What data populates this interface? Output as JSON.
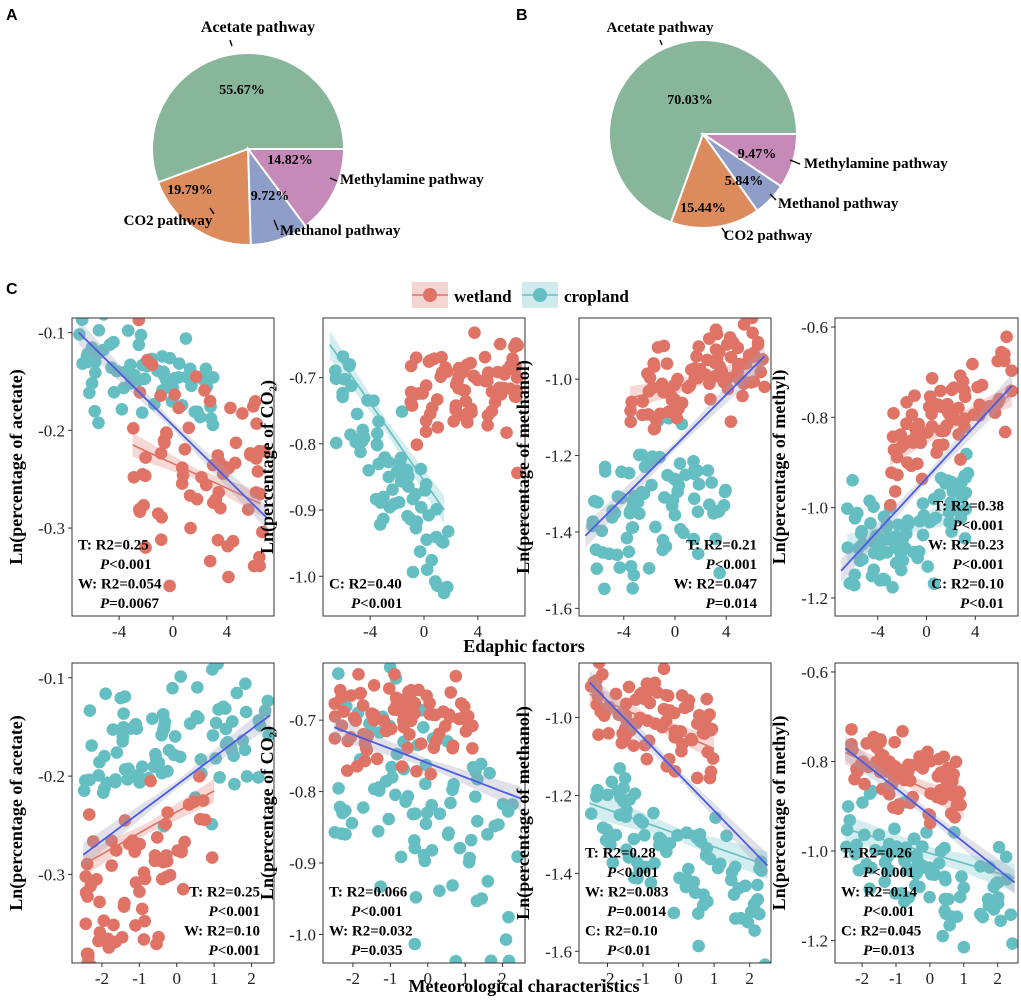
{
  "colors": {
    "wetland": "#df7366",
    "cropland": "#65bec2",
    "overall_fit": "#4b5be6",
    "pie_acetate": "#87b69b",
    "pie_co2": "#db8b5c",
    "pie_methanol": "#8f9dc9",
    "pie_methylamine": "#c58ab8"
  },
  "panel_labels": {
    "a": "A",
    "b": "B",
    "c": "C"
  },
  "legend": {
    "wetland": "wetland",
    "cropland": "cropland"
  },
  "row_labels": {
    "top": "Edaphic factors",
    "bottom": "Meteorological characteristics"
  },
  "chart_data": [
    {
      "id": "pieA",
      "type": "pie",
      "slices": [
        {
          "label": "Acetate pathway",
          "value": 55.67,
          "text": "55.67%",
          "color": "#87b69b"
        },
        {
          "label": "Methylamine pathway",
          "value": 14.82,
          "text": "14.82%",
          "color": "#c58ab8"
        },
        {
          "label": "Methanol pathway",
          "value": 9.72,
          "text": "9.72%",
          "color": "#8f9dc9"
        },
        {
          "label": "CO2 pathway",
          "value": 19.79,
          "text": "19.79%",
          "color": "#db8b5c"
        }
      ]
    },
    {
      "id": "pieB",
      "type": "pie",
      "slices": [
        {
          "label": "Acetate pathway",
          "value": 70.03,
          "text": "70.03%",
          "color": "#87b69b"
        },
        {
          "label": "Methylamine pathway",
          "value": 9.47,
          "text": "9.47%",
          "color": "#c58ab8"
        },
        {
          "label": "Methanol pathway",
          "value": 5.84,
          "text": "5.84%",
          "color": "#8f9dc9"
        },
        {
          "label": "CO2 pathway",
          "value": 15.44,
          "text": "15.44%",
          "color": "#db8b5c"
        }
      ]
    },
    {
      "id": "p1",
      "type": "scatter",
      "ylabel": "Ln(percentage of acetate)",
      "xlim": [
        -7.5,
        7.5
      ],
      "ylim": [
        -0.39,
        -0.085
      ],
      "xticks": [
        -4,
        0,
        4
      ],
      "xtick_labels": [
        "-4",
        "0",
        "4"
      ],
      "yticks": [
        -0.3,
        -0.2,
        -0.1
      ],
      "ytick_labels": [
        "-0.3",
        "-0.2",
        "-0.1"
      ],
      "wetland": {
        "n": 75,
        "xrange": [
          -3,
          6.8
        ],
        "ycenter": -0.235,
        "slope": -0.006,
        "sd": 0.05,
        "fit": [
          [
            -3,
            -0.215
          ],
          [
            6.5,
            -0.275
          ]
        ]
      },
      "cropland": {
        "n": 70,
        "xrange": [
          -7,
          3
        ],
        "ycenter": -0.14,
        "slope": -0.003,
        "sd": 0.025
      },
      "overall_fit": [
        [
          -7,
          -0.1
        ],
        [
          7,
          -0.29
        ]
      ],
      "stats": [
        [
          "T: R2=0.25",
          false
        ],
        [
          "P<0.001",
          true
        ],
        [
          "W: R2=0.054",
          false
        ],
        [
          "P=0.0067",
          true
        ]
      ],
      "stats_anchor": "bottom-left"
    },
    {
      "id": "p2",
      "type": "scatter",
      "ylabel": "Ln(percentage of CO₂)",
      "xlim": [
        -7.5,
        7.5
      ],
      "ylim": [
        -1.06,
        -0.61
      ],
      "xticks": [
        -4,
        0,
        4
      ],
      "xtick_labels": [
        "-4",
        "0",
        "4"
      ],
      "yticks": [
        -1.0,
        -0.9,
        -0.8,
        -0.7
      ],
      "ytick_labels": [
        "-1.0",
        "-0.9",
        "-0.8",
        "-0.7"
      ],
      "wetland": {
        "n": 80,
        "xrange": [
          -1,
          7
        ],
        "ycenter": -0.71,
        "slope": 0.002,
        "sd": 0.04
      },
      "cropland": {
        "n": 75,
        "xrange": [
          -7,
          2
        ],
        "ycenter": -0.84,
        "slope": -0.035,
        "sd": 0.05,
        "fit": [
          [
            -7,
            -0.65
          ],
          [
            1.5,
            -0.9
          ]
        ]
      },
      "overall_fit": null,
      "stats": [
        [
          "C: R2=0.40",
          false
        ],
        [
          "P<0.001",
          true
        ]
      ],
      "stats_anchor": "bottom-left"
    },
    {
      "id": "p3",
      "type": "scatter",
      "ylabel": "Ln(percentage of methanol)",
      "xlim": [
        -7.5,
        7.5
      ],
      "ylim": [
        -1.62,
        -0.84
      ],
      "xticks": [
        -4,
        0,
        4
      ],
      "xtick_labels": [
        "-4",
        "0",
        "4"
      ],
      "yticks": [
        -1.6,
        -1.4,
        -1.2,
        -1.0
      ],
      "ytick_labels": [
        "-1.6",
        "-1.4",
        "-1.2",
        "-1.0"
      ],
      "wetland": {
        "n": 85,
        "xrange": [
          -3.5,
          7
        ],
        "ycenter": -1.0,
        "slope": 0.01,
        "sd": 0.06,
        "fit": [
          [
            -3.5,
            -1.05
          ],
          [
            7,
            -0.96
          ]
        ]
      },
      "cropland": {
        "n": 85,
        "xrange": [
          -6.5,
          4
        ],
        "ycenter": -1.32,
        "slope": 0.01,
        "sd": 0.1
      },
      "overall_fit": [
        [
          -7,
          -1.41
        ],
        [
          7,
          -0.94
        ]
      ],
      "stats": [
        [
          "T: R2=0.21",
          false
        ],
        [
          "P<0.001",
          true
        ],
        [
          "W: R2=0.047",
          false
        ],
        [
          "P=0.014",
          true
        ]
      ],
      "stats_anchor": "bottom-right"
    },
    {
      "id": "p4",
      "type": "scatter",
      "ylabel": "Ln(percentage of methyl)",
      "xlim": [
        -7.5,
        7.5
      ],
      "ylim": [
        -1.24,
        -0.58
      ],
      "xticks": [
        -4,
        0,
        4
      ],
      "xtick_labels": [
        "-4",
        "0",
        "4"
      ],
      "yticks": [
        -1.2,
        -1.0,
        -0.8,
        -0.6
      ],
      "ytick_labels": [
        "-1.2",
        "-1.0",
        "-0.8",
        "-0.6"
      ],
      "wetland": {
        "n": 80,
        "xrange": [
          -3,
          7
        ],
        "ycenter": -0.8,
        "slope": 0.01,
        "sd": 0.06,
        "fit": [
          [
            -3,
            -0.88
          ],
          [
            7,
            -0.75
          ]
        ]
      },
      "cropland": {
        "n": 85,
        "xrange": [
          -6.5,
          3.5
        ],
        "ycenter": -1.04,
        "slope": 0.012,
        "sd": 0.06,
        "fit": [
          [
            -6.5,
            -1.09
          ],
          [
            3,
            -1.0
          ]
        ]
      },
      "overall_fit": [
        [
          -7,
          -1.14
        ],
        [
          7,
          -0.73
        ]
      ],
      "stats": [
        [
          "T: R2=0.38",
          false
        ],
        [
          "P<0.001",
          true
        ],
        [
          "W: R2=0.23",
          false
        ],
        [
          "P<0.001",
          true
        ],
        [
          "C: R2=0.10",
          false
        ],
        [
          "P<0.01",
          true
        ]
      ],
      "stats_anchor": "bottom-right"
    },
    {
      "id": "p5",
      "type": "scatter",
      "ylabel": "Ln(percentage of acetate)",
      "xlim": [
        -2.8,
        2.6
      ],
      "ylim": [
        -0.39,
        -0.085
      ],
      "xticks": [
        -2,
        -1,
        0,
        1,
        2
      ],
      "xtick_labels": [
        "-2",
        "-1",
        "0",
        "1",
        "2"
      ],
      "yticks": [
        -0.3,
        -0.2,
        -0.1
      ],
      "ytick_labels": [
        "-0.3",
        "-0.2",
        "-0.1"
      ],
      "wetland": {
        "n": 70,
        "xrange": [
          -2.5,
          1
        ],
        "ycenter": -0.3,
        "slope": 0.03,
        "sd": 0.04,
        "fit": [
          [
            -2.5,
            -0.29
          ],
          [
            1,
            -0.215
          ]
        ]
      },
      "cropland": {
        "n": 90,
        "xrange": [
          -2.5,
          2.5
        ],
        "ycenter": -0.16,
        "slope": 0.012,
        "sd": 0.03
      },
      "overall_fit": [
        [
          -2.5,
          -0.28
        ],
        [
          2.5,
          -0.138
        ]
      ],
      "stats": [
        [
          "T: R2=0.25",
          false
        ],
        [
          "P<0.001",
          true
        ],
        [
          "W: R2=0.10",
          false
        ],
        [
          "P<0.001",
          true
        ]
      ],
      "stats_anchor": "bottom-right"
    },
    {
      "id": "p6",
      "type": "scatter",
      "ylabel": "Ln(percentage of CO₂)",
      "xlim": [
        -2.8,
        2.6
      ],
      "ylim": [
        -1.04,
        -0.62
      ],
      "xticks": [
        -2,
        -1,
        0,
        1,
        2
      ],
      "xtick_labels": [
        "-2",
        "-1",
        "0",
        "1",
        "2"
      ],
      "yticks": [
        -1.0,
        -0.9,
        -0.8,
        -0.7
      ],
      "ytick_labels": [
        "-1.0",
        "-0.9",
        "-0.8",
        "-0.7"
      ],
      "wetland": {
        "n": 85,
        "xrange": [
          -2.5,
          1.2
        ],
        "ycenter": -0.7,
        "slope": -0.005,
        "sd": 0.035
      },
      "cropland": {
        "n": 90,
        "xrange": [
          -2.5,
          2.5
        ],
        "ycenter": -0.82,
        "slope": -0.03,
        "sd": 0.07
      },
      "overall_fit": [
        [
          -2.5,
          -0.71
        ],
        [
          2.5,
          -0.81
        ]
      ],
      "stats": [
        [
          "T: R2=0.066",
          false
        ],
        [
          "P<0.001",
          true
        ],
        [
          "W: R2=0.032",
          false
        ],
        [
          "P=0.035",
          true
        ]
      ],
      "stats_anchor": "bottom-left"
    },
    {
      "id": "p7",
      "type": "scatter",
      "ylabel": "Ln(percentage of methanol)",
      "xlim": [
        -2.8,
        2.6
      ],
      "ylim": [
        -1.63,
        -0.86
      ],
      "xticks": [
        -2,
        -1,
        0,
        1,
        2
      ],
      "xtick_labels": [
        "-2",
        "-1",
        "0",
        "1",
        "2"
      ],
      "yticks": [
        -1.6,
        -1.4,
        -1.2,
        -1.0
      ],
      "ytick_labels": [
        "-1.6",
        "-1.4",
        "-1.2",
        "-1.0"
      ],
      "wetland": {
        "n": 85,
        "xrange": [
          -2.5,
          1
        ],
        "ycenter": -1.0,
        "slope": -0.04,
        "sd": 0.06,
        "fit": [
          [
            -2.5,
            -0.94
          ],
          [
            1,
            -1.08
          ]
        ]
      },
      "cropland": {
        "n": 90,
        "xrange": [
          -2.5,
          2.5
        ],
        "ycenter": -1.36,
        "slope": -0.05,
        "sd": 0.08,
        "fit": [
          [
            -2.5,
            -1.22
          ],
          [
            2.5,
            -1.38
          ]
        ]
      },
      "overall_fit": [
        [
          -2.5,
          -0.91
        ],
        [
          2.5,
          -1.38
        ]
      ],
      "stats": [
        [
          "T: R2=0.28",
          false
        ],
        [
          "P<0.001",
          true
        ],
        [
          "W: R2=0.083",
          false
        ],
        [
          "P=0.0014",
          true
        ],
        [
          "C: R2=0.10",
          false
        ],
        [
          "P<0.01",
          true
        ]
      ],
      "stats_anchor": "bottom-left"
    },
    {
      "id": "p8",
      "type": "scatter",
      "ylabel": "Ln(percentage of methyl)",
      "xlim": [
        -2.8,
        2.6
      ],
      "ylim": [
        -1.25,
        -0.58
      ],
      "xticks": [
        -2,
        -1,
        0,
        1,
        2
      ],
      "xtick_labels": [
        "-2",
        "-1",
        "0",
        "1",
        "2"
      ],
      "yticks": [
        -1.2,
        -1.0,
        -0.8,
        -0.6
      ],
      "ytick_labels": [
        "-1.2",
        "-1.0",
        "-0.8",
        "-0.6"
      ],
      "wetland": {
        "n": 80,
        "xrange": [
          -2.5,
          1
        ],
        "ycenter": -0.82,
        "slope": -0.03,
        "sd": 0.05,
        "fit": [
          [
            -2.5,
            -0.78
          ],
          [
            1,
            -0.9
          ]
        ]
      },
      "cropland": {
        "n": 90,
        "xrange": [
          -2.5,
          2.5
        ],
        "ycenter": -1.05,
        "slope": -0.03,
        "sd": 0.06,
        "fit": [
          [
            -2.5,
            -0.95
          ],
          [
            2.5,
            -1.06
          ]
        ]
      },
      "overall_fit": [
        [
          -2.5,
          -0.77
        ],
        [
          2.5,
          -1.07
        ]
      ],
      "stats": [
        [
          "T: R2=0.26",
          false
        ],
        [
          "P<0.001",
          true
        ],
        [
          "W: R2=0.14",
          false
        ],
        [
          "P<0.001",
          true
        ],
        [
          "C: R2=0.045",
          false
        ],
        [
          "P=0.013",
          true
        ]
      ],
      "stats_anchor": "bottom-left"
    }
  ]
}
